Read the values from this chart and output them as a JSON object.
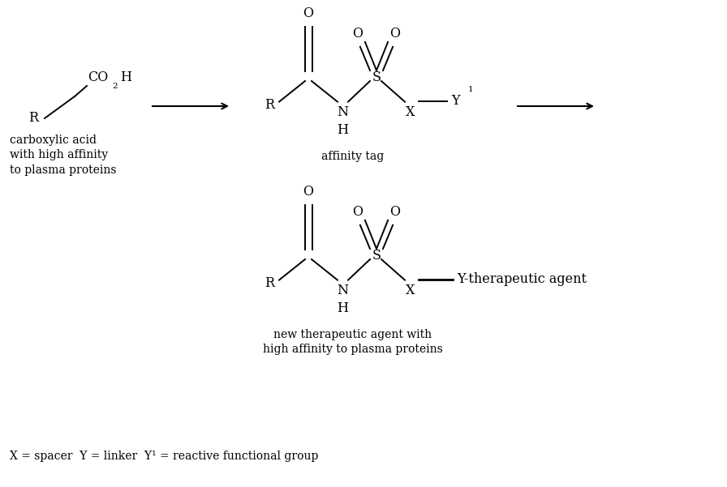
{
  "background_color": "#ffffff",
  "figsize": [
    8.96,
    6.01
  ],
  "dpi": 100,
  "structures": {
    "top_left_label": "carboxylic acid\nwith high affinity\nto plasma proteins",
    "middle_label": "affinity tag",
    "bottom_label": "new therapeutic agent with\nhigh affinity to plasma proteins",
    "footnote": "X = spacer  Y = linker  Y¹ = reactive functional group"
  },
  "colors": {
    "black": "#000000",
    "white": "#ffffff"
  }
}
